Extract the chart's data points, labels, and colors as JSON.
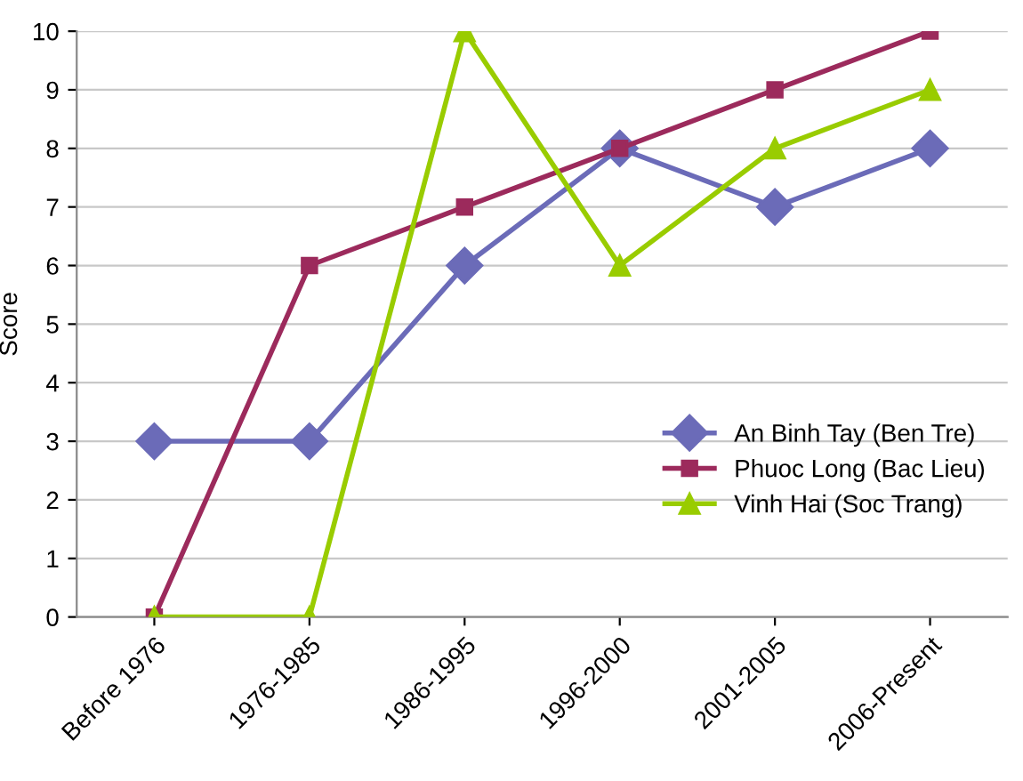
{
  "chart_data": {
    "type": "line",
    "ylabel": "Score",
    "categories": [
      "Before 1976",
      "1976-1985",
      "1986-1995",
      "1996-2000",
      "2001-2005",
      "2006-Present"
    ],
    "series": [
      {
        "name": "An Binh Tay (Ben Tre)",
        "color": "#6b6bb8",
        "marker": "diamond",
        "values": [
          3,
          3,
          6,
          8,
          7,
          8
        ]
      },
      {
        "name": "Phuoc Long (Bac Lieu)",
        "color": "#9c2a5c",
        "marker": "square",
        "values": [
          0,
          6,
          7,
          8,
          9,
          10
        ]
      },
      {
        "name": "Vinh Hai (Soc Trang)",
        "color": "#99cc00",
        "marker": "triangle",
        "values": [
          0,
          0,
          10,
          6,
          8,
          9
        ]
      }
    ],
    "ylim": [
      0,
      10
    ],
    "yticks": [
      0,
      1,
      2,
      3,
      4,
      5,
      6,
      7,
      8,
      9,
      10
    ],
    "grid": "y",
    "legend": "right",
    "line_style": "solid"
  }
}
